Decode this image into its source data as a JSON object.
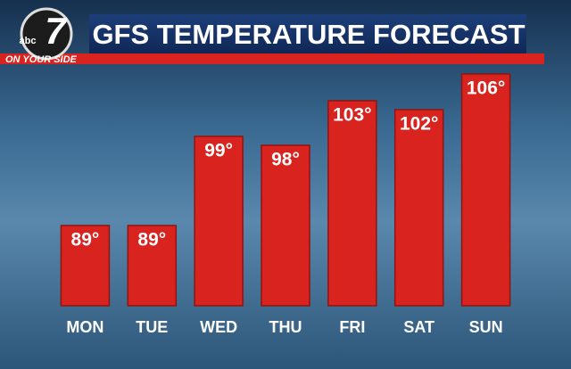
{
  "logo": {
    "network": "abc",
    "channel": "7",
    "slogan": "ON YOUR SIDE"
  },
  "chart_data": {
    "type": "bar",
    "title": "GFS TEMPERATURE FORECAST",
    "categories": [
      "MON",
      "TUE",
      "WED",
      "THU",
      "FRI",
      "SAT",
      "SUN"
    ],
    "values": [
      89,
      89,
      99,
      98,
      103,
      102,
      106
    ],
    "value_labels": [
      "89°",
      "89°",
      "99°",
      "98°",
      "103°",
      "102°",
      "106°"
    ],
    "color": "#d8231f",
    "ylim": [
      80,
      108
    ]
  }
}
